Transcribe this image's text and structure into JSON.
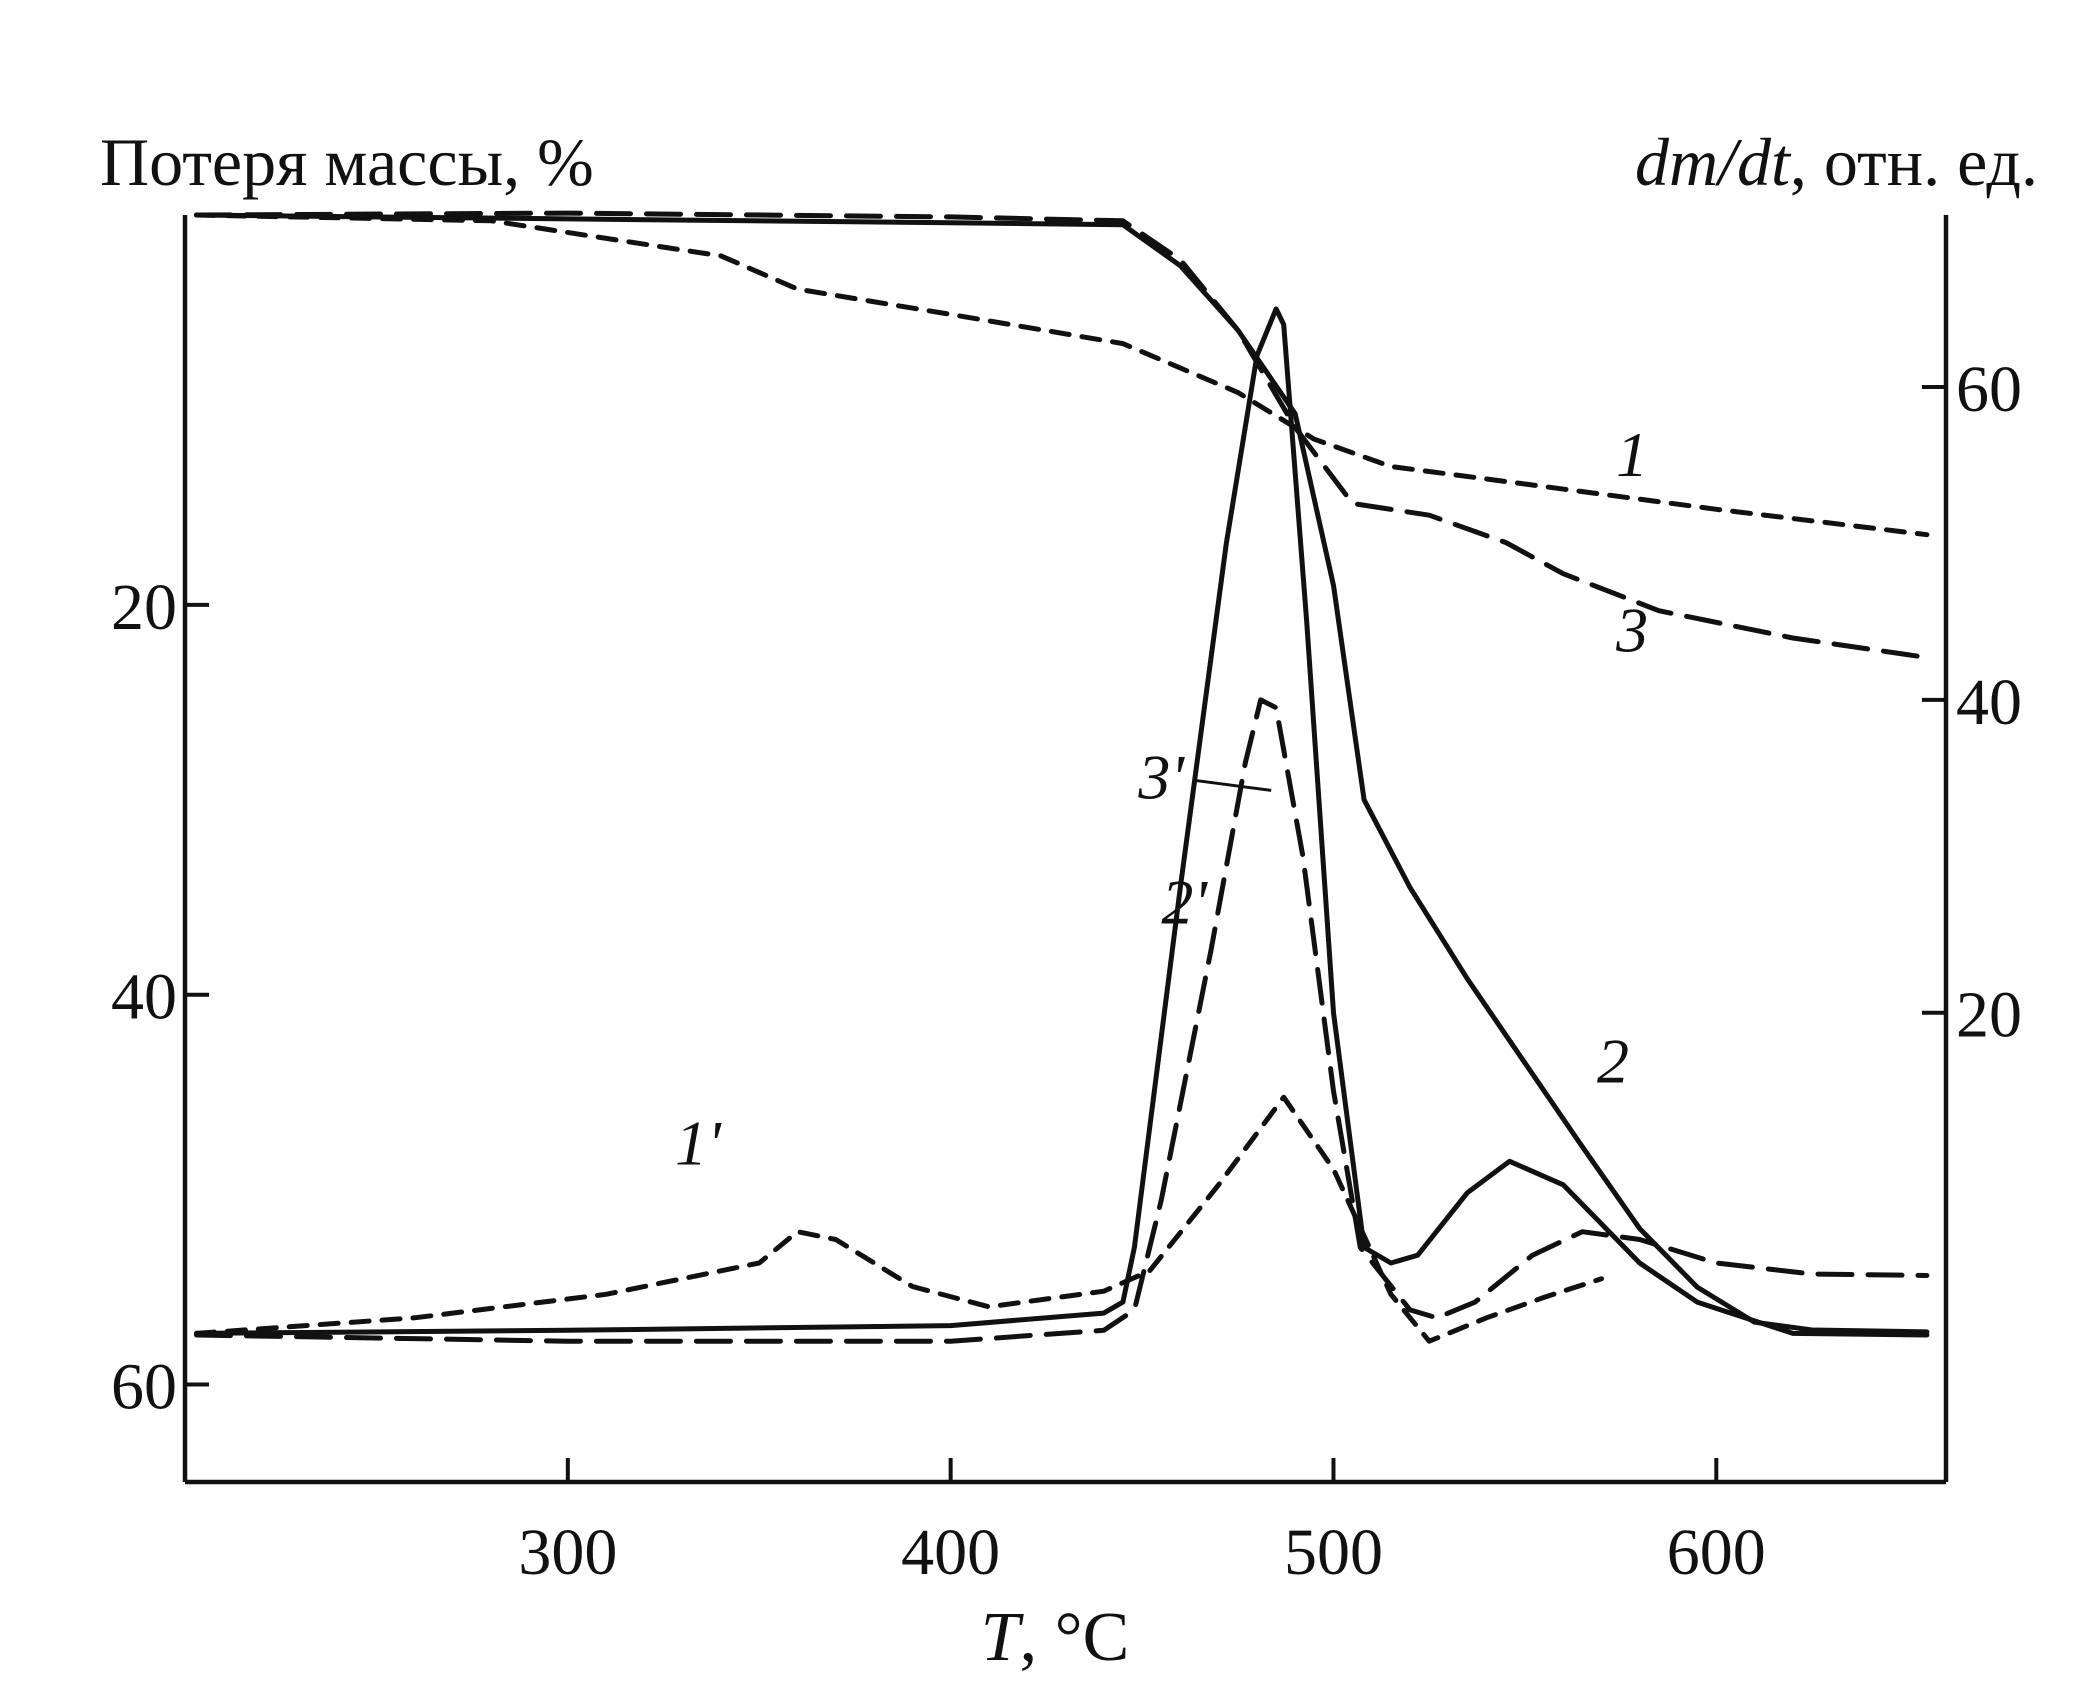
{
  "chart_data": {
    "type": "line",
    "left_axis_title": "Потеря массы, %",
    "right_axis_title_italic": "dm/dt",
    "right_axis_title_rest": ", отн. ед.",
    "x_axis_title_italic": "T",
    "x_axis_title_rest": ", °C",
    "xlim": [
      200,
      660
    ],
    "ylim_left": [
      0,
      65
    ],
    "ylim_left_inverted": true,
    "ylim_right": [
      -10,
      71
    ],
    "x_ticks": [
      300,
      400,
      500,
      600
    ],
    "y_left_ticks": [
      20,
      40,
      60
    ],
    "y_right_ticks": [
      20,
      40,
      60
    ],
    "series": [
      {
        "name": "1",
        "axis": "left",
        "style": "dashed-short",
        "points": [
          [
            203,
            0
          ],
          [
            280,
            0.3
          ],
          [
            340,
            2.1
          ],
          [
            360,
            3.8
          ],
          [
            400,
            5.1
          ],
          [
            445,
            6.6
          ],
          [
            475,
            9.1
          ],
          [
            495,
            11.5
          ],
          [
            515,
            12.9
          ],
          [
            550,
            13.8
          ],
          [
            600,
            15.1
          ],
          [
            655,
            16.4
          ]
        ]
      },
      {
        "name": "2",
        "axis": "left",
        "style": "solid",
        "points": [
          [
            203,
            0
          ],
          [
            300,
            0.2
          ],
          [
            400,
            0.4
          ],
          [
            445,
            0.5
          ],
          [
            460,
            2.6
          ],
          [
            475,
            5.9
          ],
          [
            490,
            10.2
          ],
          [
            500,
            19
          ],
          [
            508,
            30
          ],
          [
            520,
            34.5
          ],
          [
            535,
            39.2
          ],
          [
            550,
            43.5
          ],
          [
            565,
            47.8
          ],
          [
            580,
            52
          ],
          [
            595,
            55
          ],
          [
            610,
            56.8
          ],
          [
            625,
            57.2
          ],
          [
            655,
            57.3
          ]
        ]
      },
      {
        "name": "3",
        "axis": "left",
        "style": "dashed-long",
        "points": [
          [
            203,
            0
          ],
          [
            300,
            -0.1
          ],
          [
            400,
            0.1
          ],
          [
            445,
            0.3
          ],
          [
            460,
            2.3
          ],
          [
            475,
            5.9
          ],
          [
            490,
            10.9
          ],
          [
            505,
            14.8
          ],
          [
            525,
            15.4
          ],
          [
            545,
            16.8
          ],
          [
            560,
            18.4
          ],
          [
            585,
            20.3
          ],
          [
            620,
            21.7
          ],
          [
            655,
            22.7
          ]
        ]
      },
      {
        "name": "1'",
        "axis": "right",
        "style": "dashed-short",
        "points": [
          [
            203,
            -0.5
          ],
          [
            260,
            0.5
          ],
          [
            310,
            2
          ],
          [
            350,
            4
          ],
          [
            360,
            6
          ],
          [
            370,
            5.5
          ],
          [
            390,
            2.5
          ],
          [
            410,
            1.2
          ],
          [
            440,
            2.2
          ],
          [
            452,
            3.5
          ],
          [
            470,
            9
          ],
          [
            487,
            14.6
          ],
          [
            500,
            10
          ],
          [
            515,
            2
          ],
          [
            525,
            -1
          ],
          [
            540,
            0.5
          ],
          [
            555,
            1.8
          ],
          [
            570,
            3
          ]
        ]
      },
      {
        "name": "2'",
        "axis": "right",
        "style": "solid",
        "points": [
          [
            203,
            -0.5
          ],
          [
            300,
            -0.3
          ],
          [
            400,
            0
          ],
          [
            440,
            0.8
          ],
          [
            445,
            1.5
          ],
          [
            448,
            5
          ],
          [
            460,
            28
          ],
          [
            472,
            50
          ],
          [
            480,
            62
          ],
          [
            485,
            65
          ],
          [
            487,
            64
          ],
          [
            493,
            45
          ],
          [
            500,
            20
          ],
          [
            508,
            5
          ],
          [
            515,
            4
          ],
          [
            522,
            4.5
          ],
          [
            535,
            8.5
          ],
          [
            546,
            10.5
          ],
          [
            560,
            9
          ],
          [
            580,
            4
          ],
          [
            595,
            1.5
          ],
          [
            620,
            -0.5
          ],
          [
            655,
            -0.6
          ]
        ]
      },
      {
        "name": "3'",
        "axis": "right",
        "style": "dashed-long",
        "points": [
          [
            203,
            -0.6
          ],
          [
            300,
            -1
          ],
          [
            400,
            -1
          ],
          [
            440,
            -0.3
          ],
          [
            448,
            1
          ],
          [
            455,
            8
          ],
          [
            468,
            24
          ],
          [
            477,
            36
          ],
          [
            481,
            40
          ],
          [
            485,
            39.5
          ],
          [
            492,
            30
          ],
          [
            500,
            15
          ],
          [
            507,
            5
          ],
          [
            520,
            1
          ],
          [
            527,
            0.5
          ],
          [
            537,
            1.5
          ],
          [
            552,
            4.5
          ],
          [
            565,
            6
          ],
          [
            580,
            5.5
          ],
          [
            600,
            4
          ],
          [
            625,
            3.3
          ],
          [
            655,
            3.2
          ]
        ]
      }
    ],
    "labels": [
      {
        "text": "1",
        "for": "1",
        "at": [
          578,
          13.4
        ]
      },
      {
        "text": "2",
        "for": "2",
        "at": [
          573,
          44.5
        ]
      },
      {
        "text": "3",
        "for": "3",
        "at": [
          578,
          22.4
        ]
      },
      {
        "text": "1'",
        "for": "1'",
        "at": [
          334,
          10.3
        ]
      },
      {
        "text": "2'",
        "for": "2'",
        "at": [
          461,
          25.7
        ]
      },
      {
        "text": "3'",
        "for": "3'",
        "at": [
          455,
          33.7
        ]
      }
    ]
  }
}
